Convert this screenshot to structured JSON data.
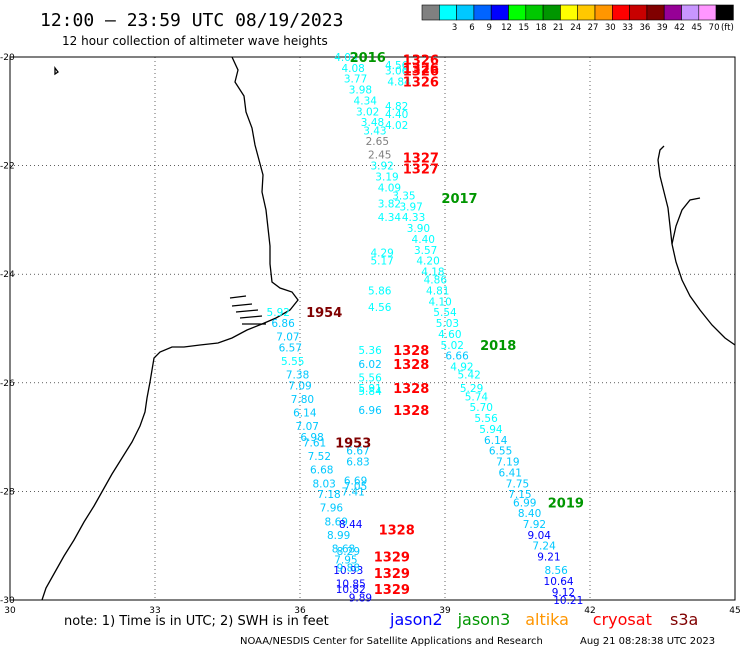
{
  "header": {
    "title": "12:00 – 23:59 UTC 08/19/2023",
    "subtitle": "12 hour collection of altimeter wave heights"
  },
  "legend": {
    "unit": "(ft)",
    "bins": [
      {
        "label": "",
        "color": "#808080"
      },
      {
        "label": "3",
        "color": "#00ffff"
      },
      {
        "label": "6",
        "color": "#00c8ff"
      },
      {
        "label": "9",
        "color": "#0064ff"
      },
      {
        "label": "12",
        "color": "#0000ff"
      },
      {
        "label": "15",
        "color": "#00ff00"
      },
      {
        "label": "18",
        "color": "#00c800"
      },
      {
        "label": "21",
        "color": "#009600"
      },
      {
        "label": "24",
        "color": "#ffff00"
      },
      {
        "label": "27",
        "color": "#ffc800"
      },
      {
        "label": "30",
        "color": "#ff9600"
      },
      {
        "label": "33",
        "color": "#ff0000"
      },
      {
        "label": "36",
        "color": "#c80000"
      },
      {
        "label": "39",
        "color": "#800000"
      },
      {
        "label": "42",
        "color": "#960096"
      },
      {
        "label": "45",
        "color": "#c896ff"
      },
      {
        "label": "70",
        "color": "#ff96ff"
      },
      {
        "label": "",
        "color": "#000000"
      }
    ]
  },
  "axes": {
    "x_ticks": [
      "30",
      "33",
      "36",
      "39",
      "42",
      "45"
    ],
    "y_ticks": [
      "-20",
      "-22",
      "-24",
      "-26",
      "-28",
      "-30"
    ]
  },
  "footer": {
    "note": "note: 1) Time is in UTC; 2) SWH is in feet",
    "credit": "NOAA/NESDIS Center for Satellite Applications and Research",
    "timestamp": "Aug 21 08:28:38 UTC 2023",
    "missions": [
      {
        "name": "jason2",
        "color": "#0000ff"
      },
      {
        "name": "jason3",
        "color": "#009600"
      },
      {
        "name": "altika",
        "color": "#ff9600"
      },
      {
        "name": "cryosat",
        "color": "#ff0000"
      },
      {
        "name": "s3a",
        "color": "#800000"
      }
    ]
  },
  "colors": {
    "low": "#00ffff",
    "mid": "#00c8ff",
    "high": "#0000ff",
    "green": "#009600",
    "red": "#ff0000",
    "maroon": "#800000",
    "gray": "#808080"
  },
  "labels": [
    {
      "text": "2016",
      "lon": 37.4,
      "lat": -20.0,
      "c": "green"
    },
    {
      "text": "1326",
      "lon": 38.5,
      "lat": -20.05,
      "c": "red"
    },
    {
      "text": "1326",
      "lon": 38.5,
      "lat": -20.2,
      "c": "red"
    },
    {
      "text": "1326",
      "lon": 38.5,
      "lat": -20.25,
      "c": "red"
    },
    {
      "text": "1326",
      "lon": 38.5,
      "lat": -20.45,
      "c": "red"
    },
    {
      "text": "1327",
      "lon": 38.5,
      "lat": -21.85,
      "c": "red"
    },
    {
      "text": "1327",
      "lon": 38.5,
      "lat": -22.05,
      "c": "red"
    },
    {
      "text": "2017",
      "lon": 39.3,
      "lat": -22.6,
      "c": "green"
    },
    {
      "text": "1954",
      "lon": 36.5,
      "lat": -24.7,
      "c": "maroon"
    },
    {
      "text": "2018",
      "lon": 40.1,
      "lat": -25.3,
      "c": "green"
    },
    {
      "text": "1328",
      "lon": 38.3,
      "lat": -25.4,
      "c": "red"
    },
    {
      "text": "1328",
      "lon": 38.3,
      "lat": -25.65,
      "c": "red"
    },
    {
      "text": "1328",
      "lon": 38.3,
      "lat": -26.1,
      "c": "red"
    },
    {
      "text": "1328",
      "lon": 38.3,
      "lat": -26.5,
      "c": "red"
    },
    {
      "text": "1953",
      "lon": 37.1,
      "lat": -27.1,
      "c": "maroon"
    },
    {
      "text": "2019",
      "lon": 41.5,
      "lat": -28.2,
      "c": "green"
    },
    {
      "text": "1328",
      "lon": 38.0,
      "lat": -28.7,
      "c": "red"
    },
    {
      "text": "1329",
      "lon": 37.9,
      "lat": -29.2,
      "c": "red"
    },
    {
      "text": "1329",
      "lon": 37.9,
      "lat": -29.5,
      "c": "red"
    },
    {
      "text": "1329",
      "lon": 37.9,
      "lat": -29.8,
      "c": "red"
    }
  ],
  "tracks": [
    {
      "name": "track-2016",
      "points": [
        {
          "v": "4.03",
          "lon": 36.95,
          "lat": -20.0,
          "c": "low"
        },
        {
          "v": "4.08",
          "lon": 37.1,
          "lat": -20.2,
          "c": "low"
        },
        {
          "v": "3.77",
          "lon": 37.15,
          "lat": -20.4,
          "c": "low"
        },
        {
          "v": "3.98",
          "lon": 37.25,
          "lat": -20.6,
          "c": "low"
        },
        {
          "v": "4.34",
          "lon": 37.35,
          "lat": -20.8,
          "c": "low"
        },
        {
          "v": "3.02",
          "lon": 37.4,
          "lat": -21.0,
          "c": "low"
        },
        {
          "v": "3.48",
          "lon": 37.5,
          "lat": -21.2,
          "c": "low"
        },
        {
          "v": "3.43",
          "lon": 37.55,
          "lat": -21.35,
          "c": "low"
        },
        {
          "v": "2.65",
          "lon": 37.6,
          "lat": -21.55,
          "c": "gray"
        },
        {
          "v": "2.45",
          "lon": 37.65,
          "lat": -21.8,
          "c": "gray"
        },
        {
          "v": "3.92",
          "lon": 37.7,
          "lat": -22.0,
          "c": "low"
        },
        {
          "v": "3.19",
          "lon": 37.8,
          "lat": -22.2,
          "c": "low"
        },
        {
          "v": "4.09",
          "lon": 37.85,
          "lat": -22.4,
          "c": "low"
        },
        {
          "v": "3.82",
          "lon": 37.85,
          "lat": -22.7,
          "c": "low"
        },
        {
          "v": "4.34",
          "lon": 37.85,
          "lat": -22.95,
          "c": "low"
        },
        {
          "v": "4.29",
          "lon": 37.7,
          "lat": -23.6,
          "c": "low"
        },
        {
          "v": "5.17",
          "lon": 37.7,
          "lat": -23.75,
          "c": "low"
        },
        {
          "v": "5.86",
          "lon": 37.65,
          "lat": -24.3,
          "c": "low"
        },
        {
          "v": "4.56",
          "lon": 37.65,
          "lat": -24.6,
          "c": "low"
        }
      ]
    },
    {
      "name": "track-2016b",
      "points": [
        {
          "v": "4.84",
          "lon": 38.05,
          "lat": -20.45,
          "c": "low"
        },
        {
          "v": "4.82",
          "lon": 38.0,
          "lat": -20.9,
          "c": "low"
        },
        {
          "v": "4.40",
          "lon": 38.0,
          "lat": -21.05,
          "c": "low"
        },
        {
          "v": "4.02",
          "lon": 38.0,
          "lat": -21.25,
          "c": "low"
        },
        {
          "v": "4.56",
          "lon": 38.0,
          "lat": -20.15,
          "c": "low"
        },
        {
          "v": "3.06",
          "lon": 38.0,
          "lat": -20.25,
          "c": "low"
        }
      ]
    },
    {
      "name": "track-2017",
      "points": [
        {
          "v": "3.35",
          "lon": 38.15,
          "lat": -22.55,
          "c": "low"
        },
        {
          "v": "3.97",
          "lon": 38.3,
          "lat": -22.75,
          "c": "low"
        },
        {
          "v": "4.33",
          "lon": 38.35,
          "lat": -22.95,
          "c": "low"
        },
        {
          "v": "3.90",
          "lon": 38.45,
          "lat": -23.15,
          "c": "low"
        },
        {
          "v": "4.40",
          "lon": 38.55,
          "lat": -23.35,
          "c": "low"
        },
        {
          "v": "3.57",
          "lon": 38.6,
          "lat": -23.55,
          "c": "low"
        },
        {
          "v": "4.20",
          "lon": 38.65,
          "lat": -23.75,
          "c": "low"
        },
        {
          "v": "4.18",
          "lon": 38.75,
          "lat": -23.95,
          "c": "low"
        },
        {
          "v": "4.86",
          "lon": 38.8,
          "lat": -24.1,
          "c": "low"
        },
        {
          "v": "4.81",
          "lon": 38.85,
          "lat": -24.3,
          "c": "low"
        },
        {
          "v": "4.10",
          "lon": 38.9,
          "lat": -24.5,
          "c": "low"
        },
        {
          "v": "5.54",
          "lon": 39.0,
          "lat": -24.7,
          "c": "low"
        },
        {
          "v": "5.03",
          "lon": 39.05,
          "lat": -24.9,
          "c": "low"
        },
        {
          "v": "4.60",
          "lon": 39.1,
          "lat": -25.1,
          "c": "low"
        },
        {
          "v": "5.02",
          "lon": 39.15,
          "lat": -25.3,
          "c": "low"
        },
        {
          "v": "6.66",
          "lon": 39.25,
          "lat": -25.5,
          "c": "mid"
        },
        {
          "v": "4.92",
          "lon": 39.35,
          "lat": -25.7,
          "c": "low"
        },
        {
          "v": "5.42",
          "lon": 39.5,
          "lat": -25.85,
          "c": "low"
        },
        {
          "v": "5.29",
          "lon": 39.55,
          "lat": -26.1,
          "c": "low"
        },
        {
          "v": "5.74",
          "lon": 39.65,
          "lat": -26.25,
          "c": "low"
        },
        {
          "v": "5.70",
          "lon": 39.75,
          "lat": -26.45,
          "c": "low"
        },
        {
          "v": "5.56",
          "lon": 39.85,
          "lat": -26.65,
          "c": "low"
        },
        {
          "v": "5.94",
          "lon": 39.95,
          "lat": -26.85,
          "c": "low"
        },
        {
          "v": "6.14",
          "lon": 40.05,
          "lat": -27.05,
          "c": "mid"
        },
        {
          "v": "6.55",
          "lon": 40.15,
          "lat": -27.25,
          "c": "mid"
        },
        {
          "v": "7.19",
          "lon": 40.3,
          "lat": -27.45,
          "c": "mid"
        },
        {
          "v": "6.41",
          "lon": 40.35,
          "lat": -27.65,
          "c": "mid"
        },
        {
          "v": "7.75",
          "lon": 40.5,
          "lat": -27.85,
          "c": "mid"
        },
        {
          "v": "7.15",
          "lon": 40.55,
          "lat": -28.05,
          "c": "mid"
        },
        {
          "v": "6.99",
          "lon": 40.65,
          "lat": -28.2,
          "c": "mid"
        },
        {
          "v": "8.40",
          "lon": 40.75,
          "lat": -28.4,
          "c": "mid"
        },
        {
          "v": "7.92",
          "lon": 40.85,
          "lat": -28.6,
          "c": "mid"
        },
        {
          "v": "9.04",
          "lon": 40.95,
          "lat": -28.8,
          "c": "high"
        },
        {
          "v": "7.24",
          "lon": 41.05,
          "lat": -29.0,
          "c": "mid"
        },
        {
          "v": "9.21",
          "lon": 41.15,
          "lat": -29.2,
          "c": "high"
        },
        {
          "v": "8.56",
          "lon": 41.3,
          "lat": -29.45,
          "c": "mid"
        },
        {
          "v": "10.64",
          "lon": 41.35,
          "lat": -29.65,
          "c": "high"
        },
        {
          "v": "9.12",
          "lon": 41.45,
          "lat": -29.85,
          "c": "high"
        },
        {
          "v": "10.21",
          "lon": 41.55,
          "lat": -30.0,
          "c": "high"
        }
      ]
    },
    {
      "name": "track-1954",
      "points": [
        {
          "v": "5.92",
          "lon": 35.55,
          "lat": -24.7,
          "c": "low"
        },
        {
          "v": "6.86",
          "lon": 35.65,
          "lat": -24.9,
          "c": "mid"
        },
        {
          "v": "7.07",
          "lon": 35.75,
          "lat": -25.15,
          "c": "mid"
        },
        {
          "v": "6.57",
          "lon": 35.8,
          "lat": -25.35,
          "c": "mid"
        },
        {
          "v": "5.55",
          "lon": 35.85,
          "lat": -25.6,
          "c": "low"
        },
        {
          "v": "7.38",
          "lon": 35.95,
          "lat": -25.85,
          "c": "mid"
        },
        {
          "v": "7.09",
          "lon": 36.0,
          "lat": -26.05,
          "c": "mid"
        },
        {
          "v": "7.80",
          "lon": 36.05,
          "lat": -26.3,
          "c": "mid"
        },
        {
          "v": "6.14",
          "lon": 36.1,
          "lat": -26.55,
          "c": "mid"
        },
        {
          "v": "7.07",
          "lon": 36.15,
          "lat": -26.8,
          "c": "mid"
        },
        {
          "v": "6.98",
          "lon": 36.25,
          "lat": -27.0,
          "c": "mid"
        },
        {
          "v": "7.61",
          "lon": 36.3,
          "lat": -27.1,
          "c": "mid"
        },
        {
          "v": "7.52",
          "lon": 36.4,
          "lat": -27.35,
          "c": "mid"
        },
        {
          "v": "6.68",
          "lon": 36.45,
          "lat": -27.6,
          "c": "mid"
        },
        {
          "v": "8.03",
          "lon": 36.5,
          "lat": -27.85,
          "c": "mid"
        },
        {
          "v": "7.18",
          "lon": 36.6,
          "lat": -28.05,
          "c": "mid"
        },
        {
          "v": "7.96",
          "lon": 36.65,
          "lat": -28.3,
          "c": "mid"
        },
        {
          "v": "8.69",
          "lon": 36.75,
          "lat": -28.55,
          "c": "mid"
        },
        {
          "v": "8.99",
          "lon": 36.8,
          "lat": -28.8,
          "c": "mid"
        },
        {
          "v": "8.68",
          "lon": 36.9,
          "lat": -29.05,
          "c": "mid"
        },
        {
          "v": "7.95",
          "lon": 36.95,
          "lat": -29.25,
          "c": "mid"
        },
        {
          "v": "10.93",
          "lon": 37.0,
          "lat": -29.45,
          "c": "high"
        },
        {
          "v": "10.85",
          "lon": 37.05,
          "lat": -29.7,
          "c": "high"
        },
        {
          "v": "10.82",
          "lon": 37.05,
          "lat": -29.8,
          "c": "high"
        },
        {
          "v": "9.89",
          "lon": 37.25,
          "lat": -29.95,
          "c": "high"
        }
      ]
    },
    {
      "name": "track-1328",
      "points": [
        {
          "v": "5.36",
          "lon": 37.45,
          "lat": -25.4,
          "c": "low"
        },
        {
          "v": "6.02",
          "lon": 37.45,
          "lat": -25.65,
          "c": "mid"
        },
        {
          "v": "5.56",
          "lon": 37.45,
          "lat": -25.9,
          "c": "low"
        },
        {
          "v": "5.91",
          "lon": 37.45,
          "lat": -26.1,
          "c": "low"
        },
        {
          "v": "5.84",
          "lon": 37.45,
          "lat": -26.15,
          "c": "low"
        },
        {
          "v": "6.96",
          "lon": 37.45,
          "lat": -26.5,
          "c": "mid"
        },
        {
          "v": "6.67",
          "lon": 37.2,
          "lat": -27.25,
          "c": "mid"
        },
        {
          "v": "6.83",
          "lon": 37.2,
          "lat": -27.45,
          "c": "mid"
        },
        {
          "v": "6.69",
          "lon": 37.15,
          "lat": -27.8,
          "c": "mid"
        },
        {
          "v": "7.05",
          "lon": 37.15,
          "lat": -27.9,
          "c": "mid"
        },
        {
          "v": "7.41",
          "lon": 37.1,
          "lat": -28.0,
          "c": "mid"
        },
        {
          "v": "8.44",
          "lon": 37.05,
          "lat": -28.6,
          "c": "high"
        },
        {
          "v": "8.29",
          "lon": 37.0,
          "lat": -29.1,
          "c": "mid"
        },
        {
          "v": "9.88",
          "lon": 37.0,
          "lat": -29.4,
          "c": "mid"
        }
      ]
    }
  ]
}
